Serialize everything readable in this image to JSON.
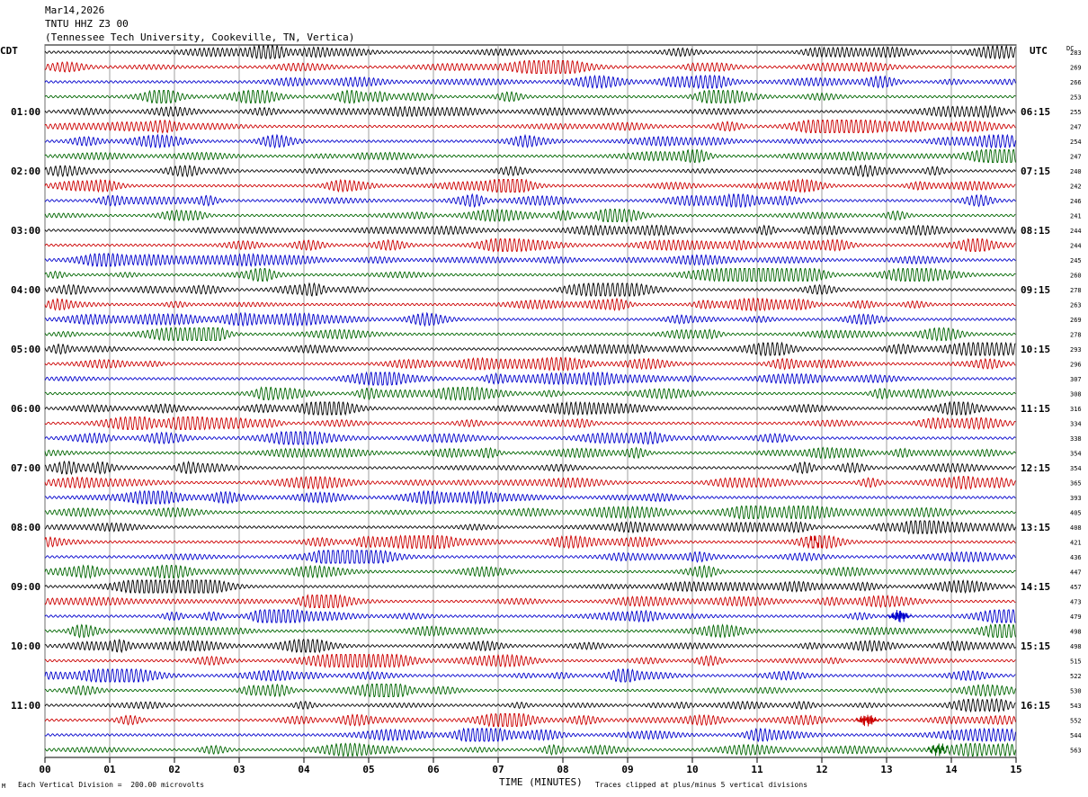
{
  "header": {
    "date": "Mar14,2026",
    "channel": "TNTU HHZ Z3 00",
    "station": "(Tennessee Tech University, Cookeville, TN, Vertica)"
  },
  "left_tz": "CDT",
  "right_tz": "UTC",
  "dc_label": "DC",
  "footer": {
    "scale_note": "Each Vertical Division =  200.00 microvolts",
    "clip_note": "Traces clipped at plus/minus 5 vertical divisions",
    "mark": "M"
  },
  "chart_data": {
    "type": "line",
    "title": "TNTU HHZ Z3 00",
    "xlabel": "TIME (MINUTES)",
    "x_ticks": [
      "00",
      "01",
      "02",
      "03",
      "04",
      "05",
      "06",
      "07",
      "08",
      "09",
      "10",
      "11",
      "12",
      "13",
      "14",
      "15"
    ],
    "xlim": [
      0,
      15
    ],
    "trace_minutes_per_line": 15,
    "trace_colors": [
      "#000000",
      "#cc0000",
      "#0000cc",
      "#006600"
    ],
    "left_hour_labels": [
      "01:00",
      "02:00",
      "03:00",
      "04:00",
      "05:00",
      "06:00",
      "07:00",
      "08:00",
      "09:00",
      "10:00",
      "11:00"
    ],
    "right_hour_labels": [
      "06:15",
      "07:15",
      "08:15",
      "09:15",
      "10:15",
      "11:15",
      "12:15",
      "13:15",
      "14:15",
      "15:15",
      "16:15"
    ],
    "dc_offsets": [
      283,
      269,
      266,
      253,
      255,
      247,
      254,
      247,
      240,
      242,
      246,
      241,
      244,
      244,
      245,
      260,
      278,
      263,
      269,
      278,
      293,
      296,
      307,
      308,
      316,
      334,
      338,
      354,
      354,
      365,
      393,
      405,
      408,
      421,
      436,
      447,
      457,
      473,
      479,
      498,
      498,
      515,
      522,
      530,
      543,
      552,
      544,
      563
    ],
    "grid": true,
    "events": [
      {
        "line": 33,
        "minute": 11.9,
        "amplitude": 4.5
      },
      {
        "line": 38,
        "minute": 13.2,
        "amplitude": 5
      },
      {
        "line": 45,
        "minute": 12.7,
        "amplitude": 5
      },
      {
        "line": 47,
        "minute": 13.8,
        "amplitude": 4.5
      }
    ]
  }
}
